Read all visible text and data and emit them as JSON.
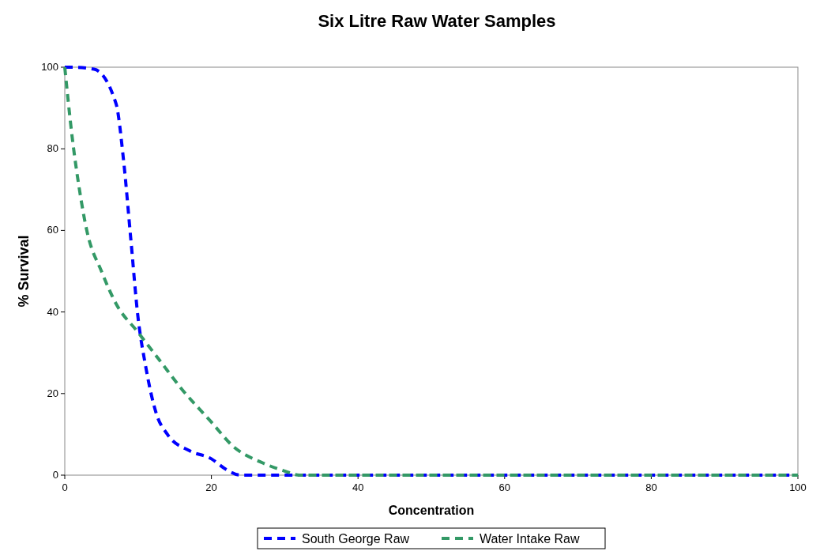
{
  "chart_data": {
    "type": "line",
    "title": "Six Litre Raw Water Samples",
    "xlabel": "Concentration",
    "ylabel": "% Survival",
    "xlim": [
      0,
      100
    ],
    "ylim": [
      0,
      100
    ],
    "xticks": [
      0,
      20,
      40,
      60,
      80,
      100
    ],
    "yticks": [
      0,
      20,
      40,
      60,
      80,
      100
    ],
    "legend": "bottom",
    "line_style": "dashed",
    "grid": false,
    "series": [
      {
        "name": "South George Raw",
        "color": "#0000ff",
        "x": [
          0,
          1,
          4,
          7,
          8,
          9,
          10,
          11,
          12.5,
          14,
          17,
          20,
          22,
          24,
          30,
          40,
          60,
          80,
          100
        ],
        "values": [
          100,
          100,
          99.5,
          91,
          77.5,
          58,
          38.5,
          27,
          15,
          10,
          6,
          4,
          1.4,
          0,
          0,
          0,
          0,
          0,
          0
        ]
      },
      {
        "name": "Water Intake Raw",
        "color": "#339966",
        "x": [
          0,
          1,
          2,
          3,
          5,
          7,
          10,
          13,
          16,
          20,
          23,
          27,
          30,
          32,
          40,
          60,
          80,
          100
        ],
        "values": [
          100,
          83,
          70,
          60,
          50,
          42,
          35,
          28,
          21,
          13,
          7,
          3,
          1,
          0,
          0,
          0,
          0,
          0
        ]
      }
    ]
  }
}
